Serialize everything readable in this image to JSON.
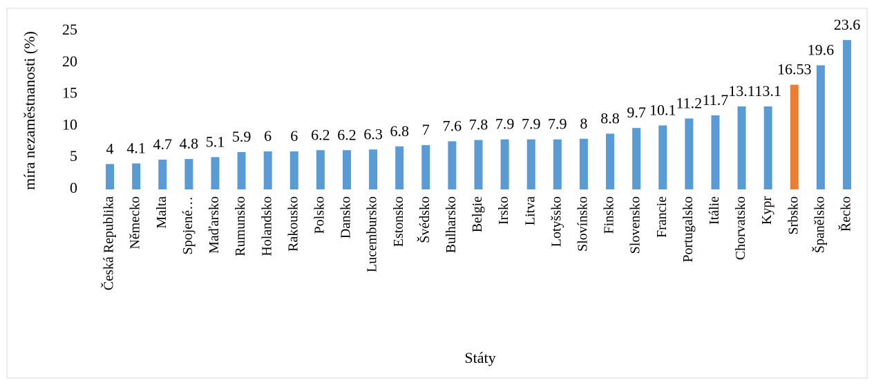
{
  "chart_data": {
    "type": "bar",
    "x_label": "Státy",
    "y_label": "míra nezaměstnanosti (%)",
    "categories": [
      "Česká Republika",
      "Německo",
      "Malta",
      "Spojené…",
      "Maďarsko",
      "Rumunsko",
      "Holandsko",
      "Rakousko",
      "Polsko",
      "Dansko",
      "Lucembursko",
      "Estonsko",
      "Švédsko",
      "Bulharsko",
      "Belgie",
      "Irsko",
      "Litva",
      "Lotyšsko",
      "Slovínsko",
      "Finsko",
      "Slovensko",
      "Francie",
      "Portugalsko",
      "Itálie",
      "Chorvatsko",
      "Kypr",
      "Srbsko",
      "Španělsko",
      "Řecko"
    ],
    "values": [
      4,
      4.1,
      4.7,
      4.8,
      5.1,
      5.9,
      6,
      6,
      6.2,
      6.2,
      6.3,
      6.8,
      7,
      7.6,
      7.8,
      7.9,
      7.9,
      7.9,
      8,
      8.8,
      9.7,
      10.1,
      11.2,
      11.7,
      13.1,
      13.1,
      16.53,
      19.6,
      23.6
    ],
    "colors": [
      "#5b9bd5",
      "#5b9bd5",
      "#5b9bd5",
      "#5b9bd5",
      "#5b9bd5",
      "#5b9bd5",
      "#5b9bd5",
      "#5b9bd5",
      "#5b9bd5",
      "#5b9bd5",
      "#5b9bd5",
      "#5b9bd5",
      "#5b9bd5",
      "#5b9bd5",
      "#5b9bd5",
      "#5b9bd5",
      "#5b9bd5",
      "#5b9bd5",
      "#5b9bd5",
      "#5b9bd5",
      "#5b9bd5",
      "#5b9bd5",
      "#5b9bd5",
      "#5b9bd5",
      "#5b9bd5",
      "#5b9bd5",
      "#ed7d31",
      "#5b9bd5",
      "#5b9bd5"
    ],
    "ylim": [
      0,
      25
    ],
    "yticks": [
      0,
      5,
      10,
      15,
      20,
      25
    ],
    "grid": false
  }
}
